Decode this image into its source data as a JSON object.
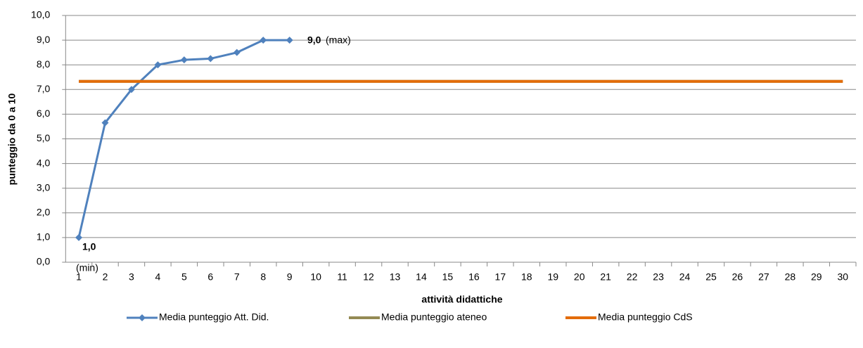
{
  "chart_data": {
    "type": "line",
    "xlabel": "attività didattiche",
    "ylabel": "punteggio da 0 a 10",
    "categories": [
      "1",
      "2",
      "3",
      "4",
      "5",
      "6",
      "7",
      "8",
      "9",
      "10",
      "11",
      "12",
      "13",
      "14",
      "15",
      "16",
      "17",
      "18",
      "19",
      "20",
      "21",
      "22",
      "23",
      "24",
      "25",
      "26",
      "27",
      "28",
      "29",
      "30"
    ],
    "series": [
      {
        "name": "Media punteggio Att. Did.",
        "color": "#4f81bd",
        "marker": "diamond",
        "values": [
          1.0,
          5.65,
          7.0,
          8.0,
          8.2,
          8.25,
          8.5,
          9.0,
          9.0,
          null,
          null,
          null,
          null,
          null,
          null,
          null,
          null,
          null,
          null,
          null,
          null,
          null,
          null,
          null,
          null,
          null,
          null,
          null,
          null,
          null
        ]
      },
      {
        "name": "Media punteggio ateneo",
        "color": "#948a54",
        "values": [
          7.33,
          7.33,
          7.33,
          7.33,
          7.33,
          7.33,
          7.33,
          7.33,
          7.33,
          7.33,
          7.33,
          7.33,
          7.33,
          7.33,
          7.33,
          7.33,
          7.33,
          7.33,
          7.33,
          7.33,
          7.33,
          7.33,
          7.33,
          7.33,
          7.33,
          7.33,
          7.33,
          7.33,
          7.33,
          7.33
        ]
      },
      {
        "name": "Media punteggio CdS",
        "color": "#e36c09",
        "values": [
          7.33,
          7.33,
          7.33,
          7.33,
          7.33,
          7.33,
          7.33,
          7.33,
          7.33,
          7.33,
          7.33,
          7.33,
          7.33,
          7.33,
          7.33,
          7.33,
          7.33,
          7.33,
          7.33,
          7.33,
          7.33,
          7.33,
          7.33,
          7.33,
          7.33,
          7.33,
          7.33,
          7.33,
          7.33,
          7.33
        ]
      }
    ],
    "annotations": [
      {
        "label": "1,0",
        "note": "(min)"
      },
      {
        "label": "9,0",
        "note": "(max)"
      }
    ],
    "ylim": [
      0,
      10
    ],
    "yticks": [
      {
        "value": 0,
        "label": "0,0"
      },
      {
        "value": 1,
        "label": "1,0"
      },
      {
        "value": 2,
        "label": "2,0"
      },
      {
        "value": 3,
        "label": "3,0"
      },
      {
        "value": 4,
        "label": "4,0"
      },
      {
        "value": 5,
        "label": "5,0"
      },
      {
        "value": 6,
        "label": "6,0"
      },
      {
        "value": 7,
        "label": "7,0"
      },
      {
        "value": 8,
        "label": "8,0"
      },
      {
        "value": 9,
        "label": "9,0"
      },
      {
        "value": 10,
        "label": "10,0"
      }
    ],
    "grid": true,
    "legend": "bottom"
  }
}
